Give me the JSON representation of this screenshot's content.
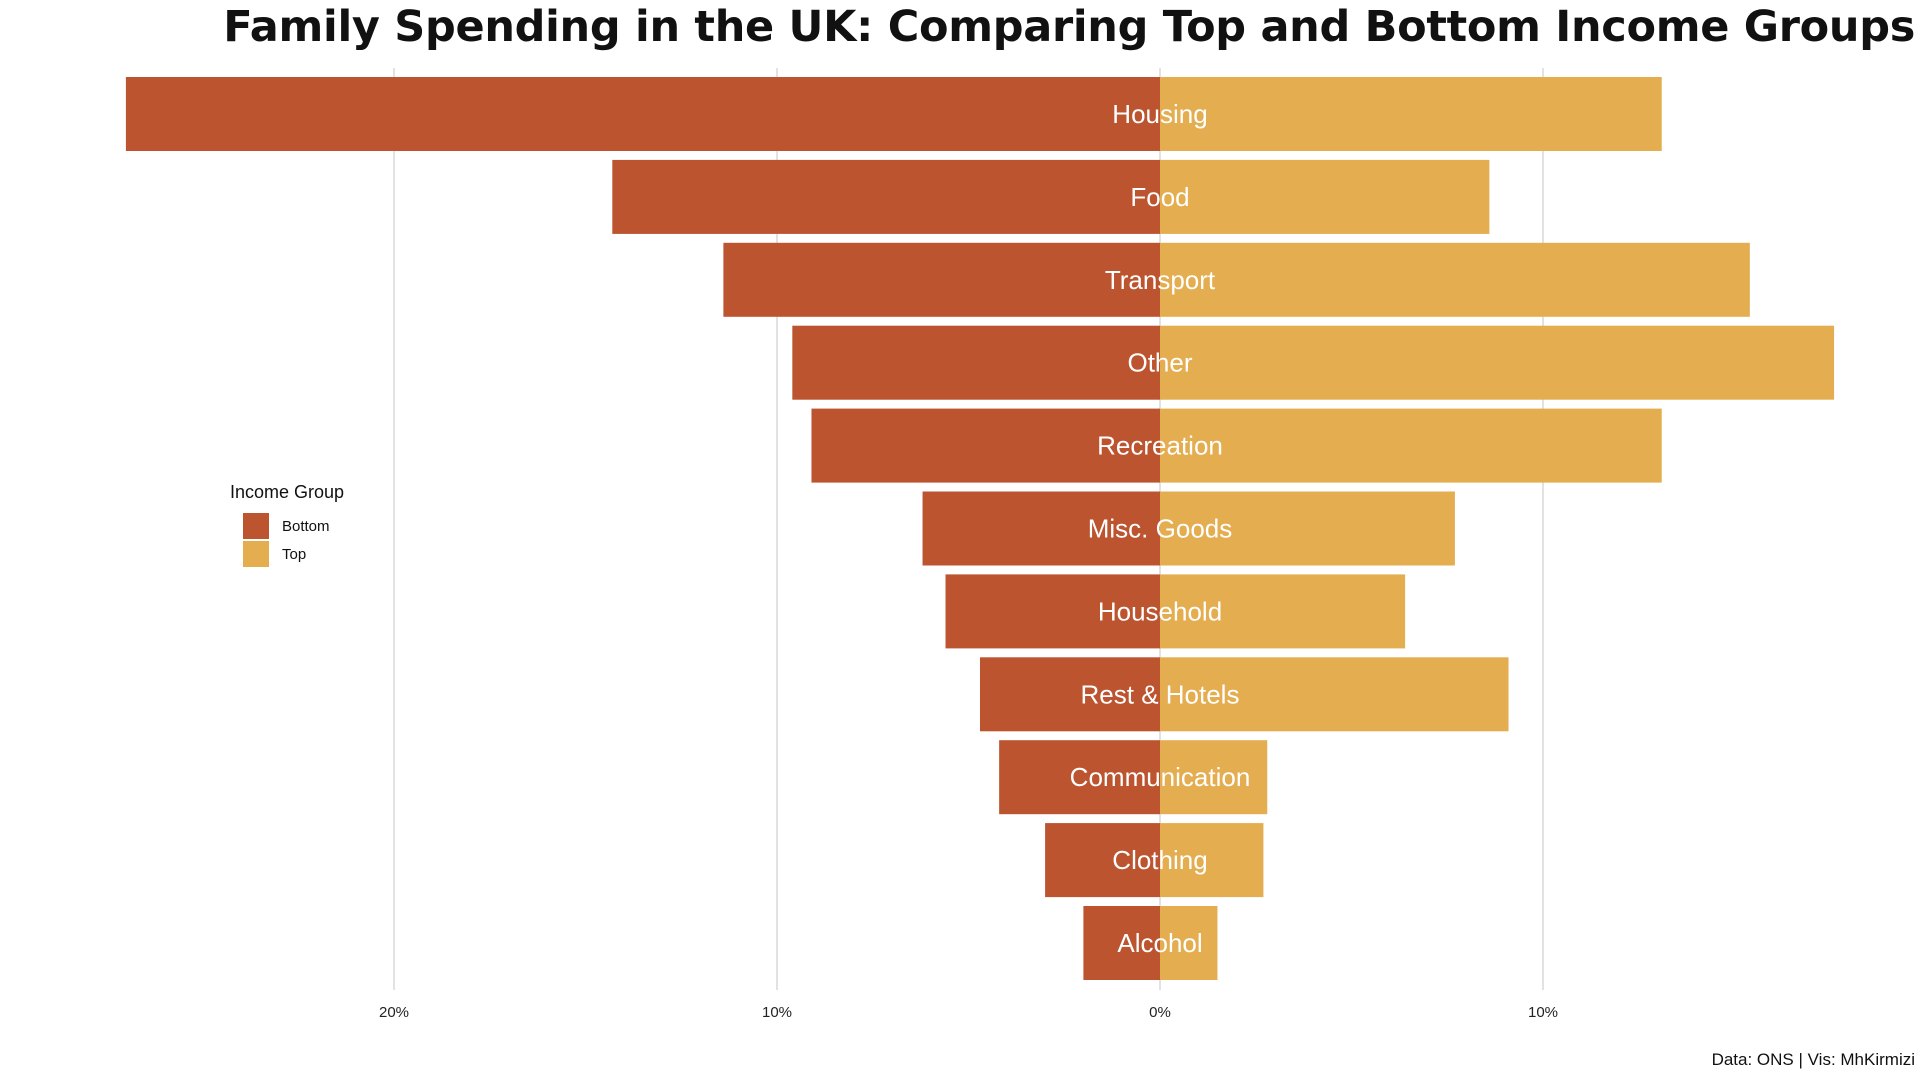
{
  "chart_data": {
    "type": "bar",
    "orientation": "horizontal-diverging",
    "title": "Family Spending in the UK: Comparing Top and Bottom Income Groups",
    "categories": [
      "Housing",
      "Food",
      "Transport",
      "Other",
      "Recreation",
      "Misc. Goods",
      "Household",
      "Rest & Hotels",
      "Communication",
      "Clothing",
      "Alcohol"
    ],
    "series": [
      {
        "name": "Bottom",
        "color": "#bc5430",
        "direction": "left",
        "values": [
          27.0,
          14.3,
          11.4,
          9.6,
          9.1,
          6.2,
          5.6,
          4.7,
          4.2,
          3.0,
          2.0
        ]
      },
      {
        "name": "Top",
        "color": "#e4ad50",
        "direction": "right",
        "values": [
          13.1,
          8.6,
          15.4,
          17.6,
          13.1,
          7.7,
          6.4,
          9.1,
          2.8,
          2.7,
          1.5
        ]
      }
    ],
    "x_ticks": [
      {
        "value": -20,
        "label": "20%"
      },
      {
        "value": -10,
        "label": "10%"
      },
      {
        "value": 0,
        "label": "0%"
      },
      {
        "value": 10,
        "label": "10%"
      }
    ],
    "xlim": [
      -27.0,
      17.6
    ],
    "grid": true,
    "legend": {
      "title": "Income Group",
      "placement": "left-middle",
      "items": [
        {
          "label": "Bottom",
          "color": "#bc5430"
        },
        {
          "label": "Top",
          "color": "#e4ad50"
        }
      ]
    },
    "caption": "Data: ONS | Vis: MhKirmizi"
  }
}
